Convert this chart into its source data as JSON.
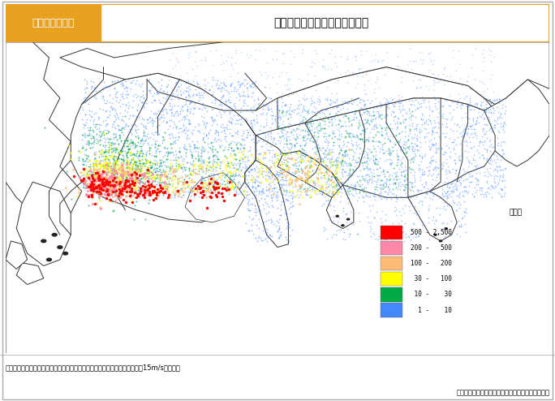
{
  "title_box_color": "#e8a020",
  "title_label": "図２－４－１７",
  "title_text": "東海地震による建物被害の分布",
  "note_text": "注）揺れ，液状化，津波，火災，がけ崩れによる被害の合計（朝５時，風速15m/sの場合）",
  "source_text": "出典：中央防災会議（平成１５年３月１８日）資料",
  "legend_unit": "（棵）",
  "legend_items": [
    {
      "label": "500 - 2,500",
      "color": "#ff0000"
    },
    {
      "label": "200 -   500",
      "color": "#ff88aa"
    },
    {
      "label": "100 -   200",
      "color": "#ffbb77"
    },
    {
      "label": " 30 -   100",
      "color": "#ffff00"
    },
    {
      "label": " 10 -    30",
      "color": "#00aa44"
    },
    {
      "label": "  1 -    10",
      "color": "#4488ff"
    }
  ],
  "bg_color": "#ffffff",
  "land_color": "#ffffff",
  "sea_color": "#ffffff",
  "border_color": "#333333",
  "figure_bg": "#ffffff"
}
